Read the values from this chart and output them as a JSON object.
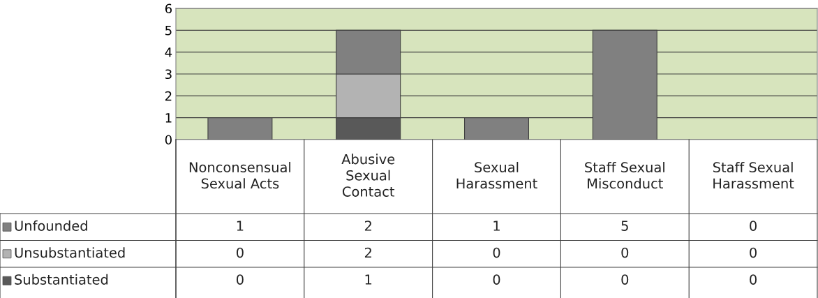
{
  "chart_data": {
    "type": "bar",
    "stacked": true,
    "categories": [
      "Nonconsensual Sexual Acts",
      "Abusive Sexual Contact",
      "Sexual Harassment",
      "Staff Sexual Misconduct",
      "Staff Sexual Harassment"
    ],
    "series": [
      {
        "name": "Substantiated",
        "color": "#595959",
        "values": [
          0,
          1,
          0,
          0,
          0
        ]
      },
      {
        "name": "Unsubstantiated",
        "color": "#b3b3b3",
        "values": [
          0,
          2,
          0,
          0,
          0
        ]
      },
      {
        "name": "Unfounded",
        "color": "#808080",
        "values": [
          1,
          2,
          1,
          5,
          0
        ]
      }
    ],
    "ylim": [
      0,
      6
    ],
    "yticks": [
      0,
      1,
      2,
      3,
      4,
      5,
      6
    ],
    "grid": "y",
    "legend": "bottom",
    "data_labels": true
  }
}
